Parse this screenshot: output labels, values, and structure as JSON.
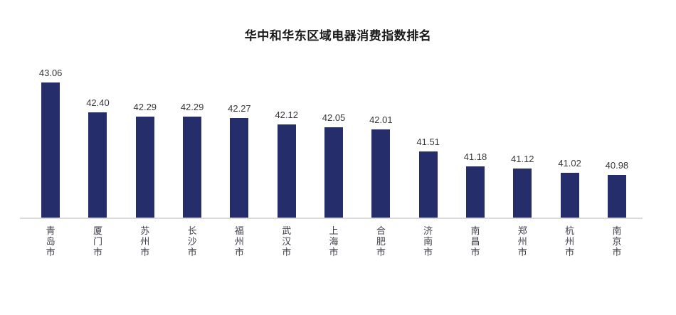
{
  "title": "华中和华东区域电器消费指数排名",
  "colors": {
    "bar": "#252e6b",
    "axis_line": "#d9d9d9",
    "title_text": "#1a1a1a",
    "value_label": "#383838",
    "city_label": "#3f3f4a",
    "background": "#ffffff"
  },
  "chart_data": {
    "type": "bar",
    "title": "华中和华东区域电器消费指数排名",
    "categories": [
      "青岛市",
      "厦门市",
      "苏州市",
      "长沙市",
      "福州市",
      "武汉市",
      "上海市",
      "合肥市",
      "济南市",
      "南昌市",
      "郑州市",
      "杭州市",
      "南京市"
    ],
    "values": [
      43.06,
      42.4,
      42.29,
      42.29,
      42.27,
      42.12,
      42.05,
      42.01,
      41.51,
      41.18,
      41.12,
      41.02,
      40.98
    ],
    "value_labels": [
      "43.06",
      "42.40",
      "42.29",
      "42.29",
      "42.27",
      "42.12",
      "42.05",
      "42.01",
      "41.51",
      "41.18",
      "41.12",
      "41.02",
      "40.98"
    ],
    "xlabel": "",
    "ylabel": "",
    "ylim": [
      40,
      43.5
    ],
    "grid": false,
    "legend": false,
    "y_axis_visible": false,
    "data_labels": "above-bars",
    "category_label_orientation": "vertical-stacked"
  }
}
